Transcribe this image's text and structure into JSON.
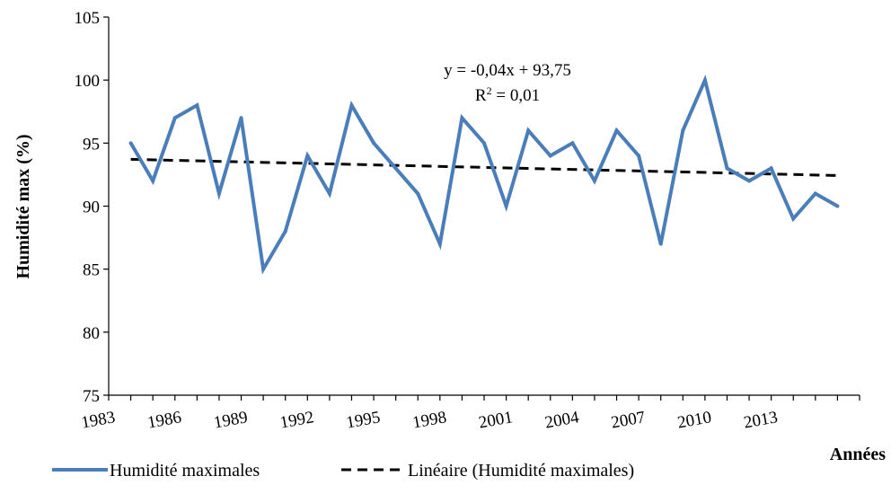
{
  "chart_data": {
    "type": "line",
    "xlabel": "Années",
    "ylabel": "Humidité max (%)",
    "ylim": [
      75,
      105
    ],
    "y_ticks": [
      75,
      80,
      85,
      90,
      95,
      100,
      105
    ],
    "x_ticks": [
      1983,
      1986,
      1989,
      1992,
      1995,
      1998,
      2001,
      2004,
      2007,
      2010,
      2013
    ],
    "x": [
      1984,
      1985,
      1986,
      1987,
      1988,
      1989,
      1990,
      1991,
      1992,
      1993,
      1994,
      1995,
      1996,
      1997,
      1998,
      1999,
      2000,
      2001,
      2002,
      2003,
      2004,
      2005,
      2006,
      2007,
      2008,
      2009,
      2010,
      2011,
      2012,
      2013,
      2014,
      2015,
      2016
    ],
    "series": [
      {
        "name": "Humidité maximales",
        "color": "#4a7ebb",
        "style": "solid",
        "values": [
          95,
          92,
          97,
          98,
          91,
          97,
          85,
          88,
          94,
          91,
          98,
          95,
          93,
          91,
          87,
          97,
          95,
          90,
          96,
          94,
          95,
          92,
          96,
          94,
          87,
          96,
          100,
          93,
          92,
          93,
          89,
          91,
          90
        ]
      },
      {
        "name": "Linéaire (Humidité maximales)",
        "color": "#000000",
        "style": "dashed",
        "trend": {
          "slope": -0.04,
          "intercept": 93.75
        }
      }
    ],
    "annotation": {
      "equation": "y = -0,04x + 93,75",
      "r2_prefix": "R",
      "r2_sup": "2",
      "r2_suffix": " = 0,01"
    },
    "legend": {
      "position": "bottom",
      "items": [
        "Humidité maximales",
        "Linéaire (Humidité maximales)"
      ]
    },
    "grid": false
  }
}
